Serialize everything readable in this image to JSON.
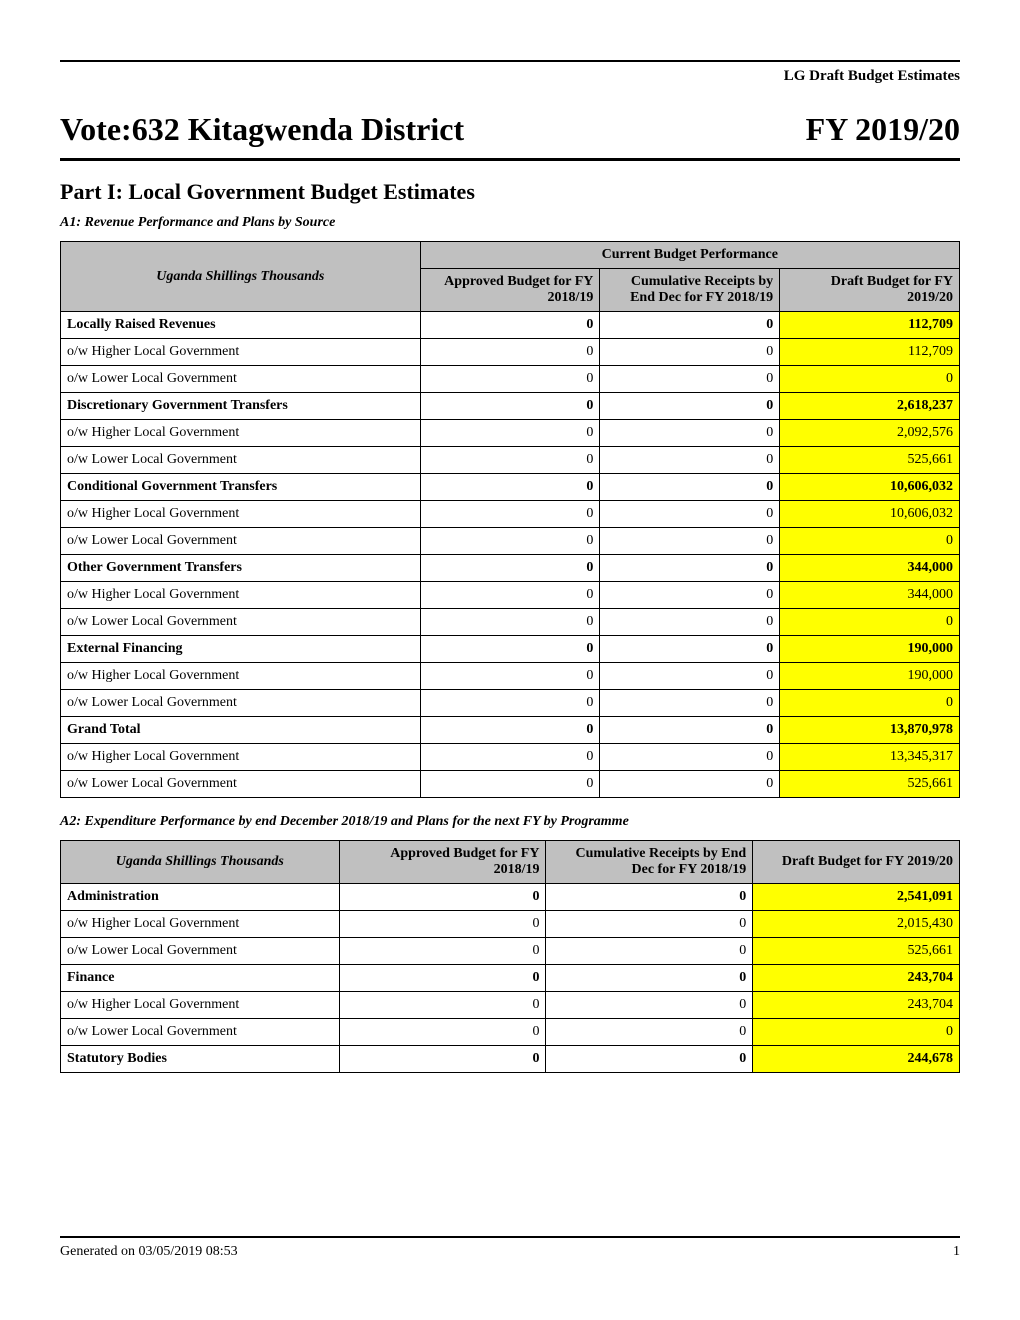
{
  "header": {
    "top_label": "LG Draft Budget Estimates",
    "vote_title": "Vote:632 Kitagwenda District",
    "fy": "FY 2019/20",
    "part_title": "Part I: Local Government Budget Estimates",
    "a1_sub": "A1: Revenue Performance and Plans by Source",
    "a2_sub": "A2: Expenditure Performance by end December 2018/19 and Plans for the next FY by Programme"
  },
  "colors": {
    "highlight": "#ffff00",
    "header_bg": "#c0c0c0",
    "border": "#000000",
    "text": "#000000",
    "background": "#ffffff"
  },
  "table1": {
    "category_label": "Uganda Shillings Thousands",
    "super_header": "Current Budget Performance",
    "columns": [
      "Approved Budget for FY 2018/19",
      "Cumulative Receipts by End Dec for FY 2018/19",
      "Draft Budget for FY 2019/20"
    ],
    "rows": [
      {
        "label": "Locally Raised Revenues",
        "bold": true,
        "values": [
          "0",
          "0",
          "112,709"
        ]
      },
      {
        "label": "o/w Higher Local Government",
        "bold": false,
        "values": [
          "0",
          "0",
          "112,709"
        ]
      },
      {
        "label": "o/w Lower Local Government",
        "bold": false,
        "values": [
          "0",
          "0",
          "0"
        ]
      },
      {
        "label": "Discretionary Government Transfers",
        "bold": true,
        "values": [
          "0",
          "0",
          "2,618,237"
        ]
      },
      {
        "label": "o/w Higher Local Government",
        "bold": false,
        "values": [
          "0",
          "0",
          "2,092,576"
        ]
      },
      {
        "label": "o/w Lower Local Government",
        "bold": false,
        "values": [
          "0",
          "0",
          "525,661"
        ]
      },
      {
        "label": "Conditional Government Transfers",
        "bold": true,
        "values": [
          "0",
          "0",
          "10,606,032"
        ]
      },
      {
        "label": "o/w Higher Local Government",
        "bold": false,
        "values": [
          "0",
          "0",
          "10,606,032"
        ]
      },
      {
        "label": "o/w Lower Local Government",
        "bold": false,
        "values": [
          "0",
          "0",
          "0"
        ]
      },
      {
        "label": "Other Government Transfers",
        "bold": true,
        "values": [
          "0",
          "0",
          "344,000"
        ]
      },
      {
        "label": "o/w Higher Local Government",
        "bold": false,
        "values": [
          "0",
          "0",
          "344,000"
        ]
      },
      {
        "label": "o/w Lower Local Government",
        "bold": false,
        "values": [
          "0",
          "0",
          "0"
        ]
      },
      {
        "label": "External Financing",
        "bold": true,
        "values": [
          "0",
          "0",
          "190,000"
        ]
      },
      {
        "label": "o/w Higher Local Government",
        "bold": false,
        "values": [
          "0",
          "0",
          "190,000"
        ]
      },
      {
        "label": "o/w Lower Local Government",
        "bold": false,
        "values": [
          "0",
          "0",
          "0"
        ]
      },
      {
        "label": "Grand Total",
        "bold": true,
        "align": "right",
        "values": [
          "0",
          "0",
          "13,870,978"
        ]
      },
      {
        "label": "o/w Higher Local Government",
        "bold": false,
        "align": "right",
        "values": [
          "0",
          "0",
          "13,345,317"
        ]
      },
      {
        "label": "o/w Lower Local Government",
        "bold": false,
        "align": "right",
        "values": [
          "0",
          "0",
          "525,661"
        ]
      }
    ]
  },
  "table2": {
    "category_label": "Uganda Shillings Thousands",
    "columns": [
      "Approved Budget for FY 2018/19",
      "Cumulative Receipts by End Dec for FY 2018/19",
      "Draft Budget for FY 2019/20"
    ],
    "rows": [
      {
        "label": "Administration",
        "bold": true,
        "values": [
          "0",
          "0",
          "2,541,091"
        ]
      },
      {
        "label": "o/w Higher Local Government",
        "bold": false,
        "values": [
          "0",
          "0",
          "2,015,430"
        ]
      },
      {
        "label": "o/w Lower Local Government",
        "bold": false,
        "values": [
          "0",
          "0",
          "525,661"
        ]
      },
      {
        "label": "Finance",
        "bold": true,
        "values": [
          "0",
          "0",
          "243,704"
        ]
      },
      {
        "label": "o/w Higher Local Government",
        "bold": false,
        "values": [
          "0",
          "0",
          "243,704"
        ]
      },
      {
        "label": "o/w Lower Local Government",
        "bold": false,
        "values": [
          "0",
          "0",
          "0"
        ]
      },
      {
        "label": "Statutory Bodies",
        "bold": true,
        "values": [
          "0",
          "0",
          "244,678"
        ]
      }
    ]
  },
  "footer": {
    "generated": "Generated on 03/05/2019 08:53",
    "page": "1"
  }
}
